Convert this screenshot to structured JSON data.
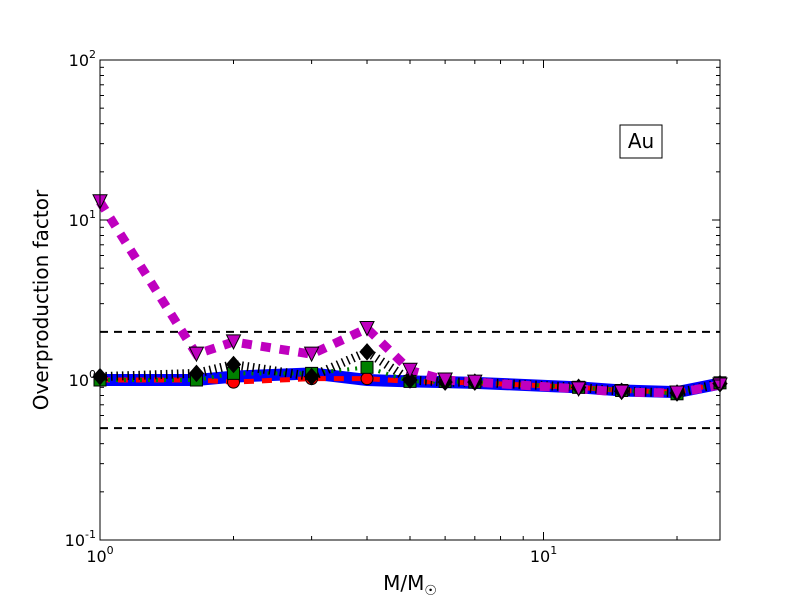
{
  "chart_data": {
    "type": "line",
    "title": "",
    "xlabel": "M/M",
    "xlabel_symbol": "☉",
    "ylabel": "Overproduction factor",
    "xscale": "log",
    "yscale": "log",
    "xlim": [
      1,
      25
    ],
    "ylim": [
      0.1,
      100
    ],
    "xticks": [
      {
        "value": 1,
        "base": "10",
        "exp": "0"
      },
      {
        "value": 10,
        "base": "10",
        "exp": "1"
      }
    ],
    "yticks": [
      {
        "value": 0.1,
        "base": "10",
        "exp": "-1"
      },
      {
        "value": 1,
        "base": "10",
        "exp": "0"
      },
      {
        "value": 10,
        "base": "10",
        "exp": "1"
      },
      {
        "value": 100,
        "base": "10",
        "exp": "2"
      }
    ],
    "annotation": "Au",
    "reference_lines": [
      2,
      0.5
    ],
    "x": [
      1,
      1.65,
      2,
      3,
      4,
      5,
      6,
      7,
      12,
      15,
      20,
      25
    ],
    "series": [
      {
        "color": "#0000ff",
        "style": "solid",
        "marker": "none",
        "values": [
          1.0,
          1.0,
          1.05,
          1.1,
          1.0,
          0.98,
          0.97,
          0.96,
          0.9,
          0.86,
          0.84,
          0.95
        ]
      },
      {
        "color": "#ff0000",
        "style": "dashed",
        "marker": "circle",
        "values": [
          1.0,
          1.0,
          0.97,
          1.02,
          1.02,
          0.98,
          0.97,
          0.96,
          0.9,
          0.86,
          0.84,
          0.95
        ]
      },
      {
        "color": "#008000",
        "style": "dashdot",
        "marker": "square",
        "values": [
          1.0,
          1.0,
          1.1,
          1.1,
          1.2,
          0.98,
          0.98,
          0.97,
          0.9,
          0.86,
          0.82,
          0.96
        ]
      },
      {
        "color": "#000000",
        "style": "dotted",
        "marker": "diamond",
        "values": [
          1.05,
          1.1,
          1.25,
          1.05,
          1.5,
          1.0,
          0.97,
          0.97,
          0.9,
          0.85,
          0.83,
          0.95
        ]
      },
      {
        "color": "#bf00bf",
        "style": "dotted",
        "marker": "triangle-down",
        "values": [
          13,
          1.45,
          1.73,
          1.45,
          2.1,
          1.15,
          1.0,
          0.97,
          0.88,
          0.84,
          0.83,
          0.93
        ]
      }
    ],
    "grid": false,
    "legend": "none"
  }
}
